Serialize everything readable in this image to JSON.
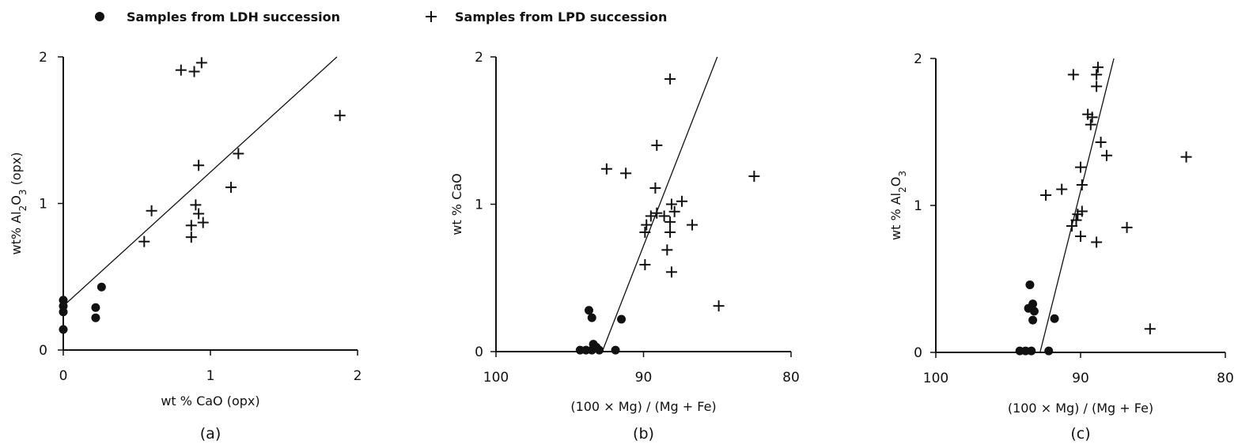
{
  "legend": [
    {
      "label": "Samples from LDH succession",
      "symbol": "dot"
    },
    {
      "label": "Samples from LPD succession",
      "symbol": "plus"
    }
  ],
  "colors": {
    "ink": "#111111",
    "background": "#ffffff"
  },
  "chart_data": [
    {
      "type": "scatter",
      "panel": "(a)",
      "xlabel": "wt % CaO (opx)",
      "ylabel": "wt% Al2O3 (opx)",
      "xlim": [
        0,
        2
      ],
      "ylim": [
        0,
        2
      ],
      "xticks": [
        "0",
        "1",
        "2"
      ],
      "yticks": [
        "0",
        "1",
        "2"
      ],
      "grid": false,
      "series": [
        {
          "name": "Samples from LDH succession",
          "symbol": "dot",
          "points": [
            [
              0,
              0.34
            ],
            [
              0,
              0.3
            ],
            [
              0,
              0.26
            ],
            [
              0,
              0.14
            ],
            [
              0.22,
              0.29
            ],
            [
              0.22,
              0.22
            ],
            [
              0.26,
              0.43
            ]
          ]
        },
        {
          "name": "Samples from LPD succession",
          "symbol": "plus",
          "points": [
            [
              0.55,
              0.74
            ],
            [
              0.6,
              0.95
            ],
            [
              0.8,
              1.91
            ],
            [
              0.89,
              1.9
            ],
            [
              0.94,
              1.96
            ],
            [
              0.92,
              1.26
            ],
            [
              0.9,
              0.99
            ],
            [
              0.92,
              0.93
            ],
            [
              0.95,
              0.87
            ],
            [
              0.87,
              0.85
            ],
            [
              0.87,
              0.77
            ],
            [
              1.14,
              1.11
            ],
            [
              1.19,
              1.34
            ],
            [
              1.88,
              1.6
            ]
          ]
        }
      ],
      "line": [
        [
          0,
          0.3
        ],
        [
          1.86,
          2.0
        ]
      ]
    },
    {
      "type": "scatter",
      "panel": "(b)",
      "xlabel": "(100 × Mg) / (Mg + Fe)",
      "ylabel": "wt % CaO",
      "xlim": [
        100,
        80
      ],
      "ylim": [
        0,
        2
      ],
      "xticks": [
        "100",
        "90",
        "80"
      ],
      "yticks": [
        "0",
        "1",
        "2"
      ],
      "grid": false,
      "series": [
        {
          "name": "Samples from LDH succession",
          "symbol": "dot",
          "points": [
            [
              93.7,
              0.28
            ],
            [
              93.5,
              0.23
            ],
            [
              93.4,
              0.05
            ],
            [
              93.2,
              0.03
            ],
            [
              94.3,
              0.01
            ],
            [
              93.9,
              0.01
            ],
            [
              93.5,
              0.01
            ],
            [
              93.0,
              0.01
            ],
            [
              91.9,
              0.01
            ],
            [
              91.5,
              0.22
            ]
          ]
        },
        {
          "name": "Samples from LPD succession",
          "symbol": "plus",
          "points": [
            [
              92.5,
              1.24
            ],
            [
              91.2,
              1.21
            ],
            [
              88.2,
              1.85
            ],
            [
              89.1,
              1.4
            ],
            [
              89.2,
              1.11
            ],
            [
              89.5,
              0.92
            ],
            [
              89.8,
              0.86
            ],
            [
              89.9,
              0.81
            ],
            [
              88.6,
              0.92
            ],
            [
              89.1,
              0.94
            ],
            [
              88.1,
              1.0
            ],
            [
              87.9,
              0.95
            ],
            [
              87.4,
              1.02
            ],
            [
              88.2,
              0.88
            ],
            [
              88.2,
              0.81
            ],
            [
              88.4,
              0.69
            ],
            [
              88.1,
              0.54
            ],
            [
              89.9,
              0.59
            ],
            [
              86.7,
              0.86
            ],
            [
              84.9,
              0.31
            ],
            [
              82.5,
              1.19
            ]
          ]
        }
      ],
      "line": [
        [
          92.8,
          0
        ],
        [
          85.0,
          2.0
        ]
      ]
    },
    {
      "type": "scatter",
      "panel": "(c)",
      "xlabel": "(100 × Mg) / (Mg + Fe)",
      "ylabel": "wt % Al2O3",
      "xlim": [
        100,
        80
      ],
      "ylim": [
        0,
        2
      ],
      "xticks": [
        "100",
        "90",
        "80"
      ],
      "yticks": [
        "0",
        "1",
        "2"
      ],
      "grid": false,
      "series": [
        {
          "name": "Samples from LDH succession",
          "symbol": "dot",
          "points": [
            [
              93.5,
              0.46
            ],
            [
              93.3,
              0.33
            ],
            [
              93.2,
              0.28
            ],
            [
              93.3,
              0.22
            ],
            [
              93.6,
              0.3
            ],
            [
              94.2,
              0.01
            ],
            [
              93.8,
              0.01
            ],
            [
              93.4,
              0.01
            ],
            [
              92.2,
              0.01
            ],
            [
              91.8,
              0.23
            ]
          ]
        },
        {
          "name": "Samples from LPD succession",
          "symbol": "plus",
          "points": [
            [
              92.4,
              1.07
            ],
            [
              91.3,
              1.11
            ],
            [
              90.5,
              1.89
            ],
            [
              88.8,
              1.94
            ],
            [
              88.9,
              1.89
            ],
            [
              88.9,
              1.81
            ],
            [
              89.5,
              1.62
            ],
            [
              89.2,
              1.6
            ],
            [
              89.3,
              1.55
            ],
            [
              88.6,
              1.43
            ],
            [
              88.2,
              1.34
            ],
            [
              90.0,
              1.26
            ],
            [
              89.9,
              1.14
            ],
            [
              90.2,
              0.94
            ],
            [
              89.9,
              0.96
            ],
            [
              90.3,
              0.9
            ],
            [
              90.6,
              0.86
            ],
            [
              90.0,
              0.79
            ],
            [
              88.9,
              0.75
            ],
            [
              86.8,
              0.85
            ],
            [
              85.2,
              0.16
            ],
            [
              82.7,
              1.33
            ]
          ]
        }
      ],
      "line": [
        [
          92.8,
          0
        ],
        [
          87.7,
          2.0
        ]
      ]
    }
  ]
}
